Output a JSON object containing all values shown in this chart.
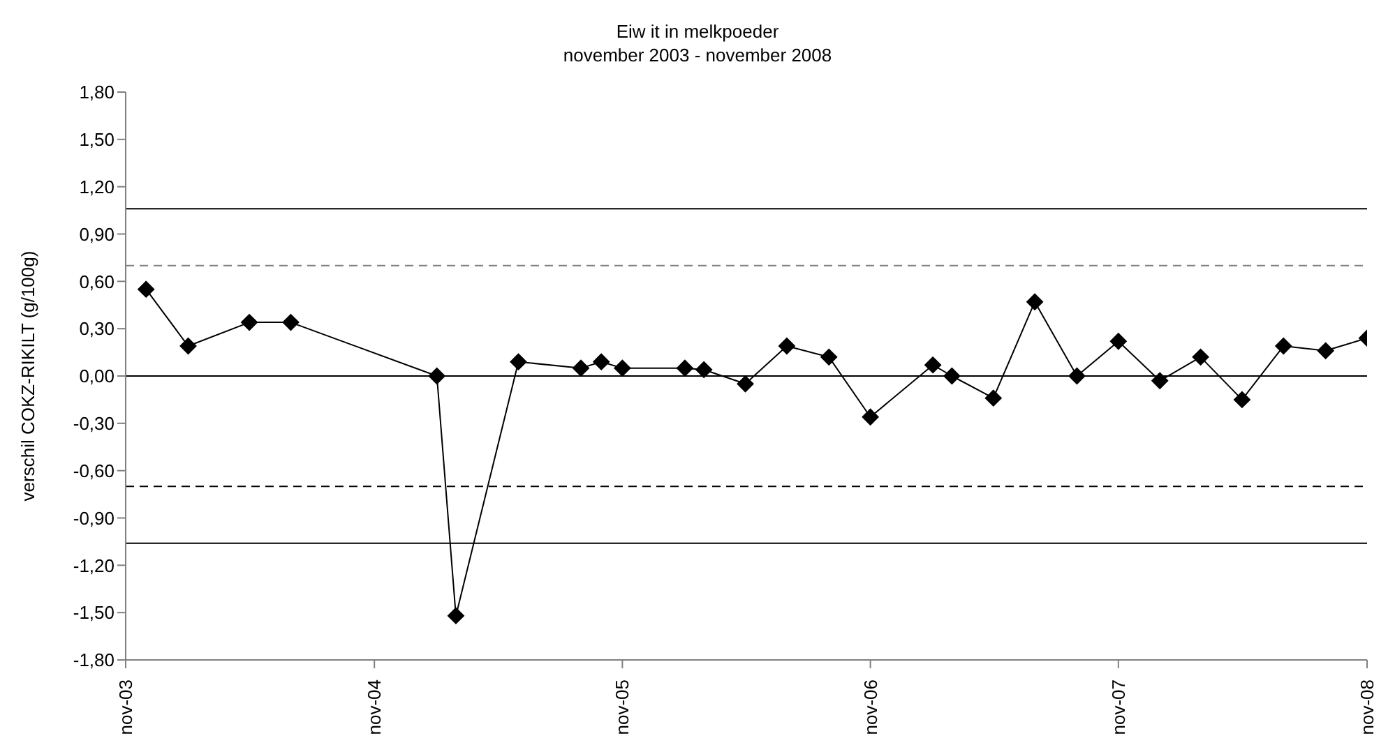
{
  "chart_data": {
    "type": "line",
    "title": "Eiw it in melkpoeder",
    "subtitle": "november 2003 - november 2008",
    "ylabel": "verschil COKZ-RIKILT (g/100g)",
    "x": [
      "2003-12",
      "2004-02",
      "2004-05",
      "2004-07",
      "2005-02",
      "2005-03",
      "2005-06",
      "2005-09",
      "2005-10",
      "2005-11",
      "2006-02",
      "2006-03",
      "2006-05",
      "2006-07",
      "2006-09",
      "2006-11",
      "2007-02",
      "2007-03",
      "2007-05",
      "2007-07",
      "2007-09",
      "2007-11",
      "2008-01",
      "2008-03",
      "2008-05",
      "2008-07",
      "2008-09",
      "2008-11"
    ],
    "series": [
      {
        "color": "#000000",
        "values": [
          0.55,
          0.19,
          0.34,
          0.34,
          0.0,
          -1.52,
          0.09,
          0.05,
          0.09,
          0.05,
          0.05,
          0.04,
          -0.05,
          0.19,
          0.12,
          -0.26,
          0.07,
          0.0,
          -0.14,
          0.47,
          0.0,
          0.22,
          -0.03,
          0.12,
          -0.15,
          0.19,
          0.16,
          0.24
        ]
      }
    ],
    "xlim": [
      "2003-11",
      "2008-11"
    ],
    "xticks": [
      {
        "value": "2003-11",
        "label": "nov-03"
      },
      {
        "value": "2004-11",
        "label": "nov-04"
      },
      {
        "value": "2005-11",
        "label": "nov-05"
      },
      {
        "value": "2006-11",
        "label": "nov-06"
      },
      {
        "value": "2007-11",
        "label": "nov-07"
      },
      {
        "value": "2008-11",
        "label": "nov-08"
      }
    ],
    "ylim": [
      -1.8,
      1.8
    ],
    "yticks": [
      {
        "value": 1.8,
        "label": "1,80"
      },
      {
        "value": 1.5,
        "label": "1,50"
      },
      {
        "value": 1.2,
        "label": "1,20"
      },
      {
        "value": 0.9,
        "label": "0,90"
      },
      {
        "value": 0.6,
        "label": "0,60"
      },
      {
        "value": 0.3,
        "label": "0,30"
      },
      {
        "value": 0,
        "label": "0,00"
      },
      {
        "value": -0.3,
        "label": "-0,30"
      },
      {
        "value": -0.6,
        "label": "-0,60"
      },
      {
        "value": -0.9,
        "label": "-0,90"
      },
      {
        "value": -1.2,
        "label": "-1,20"
      },
      {
        "value": -1.5,
        "label": "-1,50"
      },
      {
        "value": -1.8,
        "label": "-1,80"
      }
    ],
    "ref_lines": [
      {
        "axis": "y",
        "value": 1.06,
        "color": "#000000",
        "line_style": "solid"
      },
      {
        "axis": "y",
        "value": 0.7,
        "color": "#808080",
        "line_style": "dashed"
      },
      {
        "axis": "y",
        "value": 0,
        "color": "#000000",
        "line_style": "solid"
      },
      {
        "axis": "y",
        "value": -0.7,
        "color": "#000000",
        "line_style": "dashed"
      },
      {
        "axis": "y",
        "value": -1.06,
        "color": "#000000",
        "line_style": "solid"
      }
    ],
    "grid": false,
    "legend": false,
    "marker": "diamond",
    "line_style": "solid"
  }
}
